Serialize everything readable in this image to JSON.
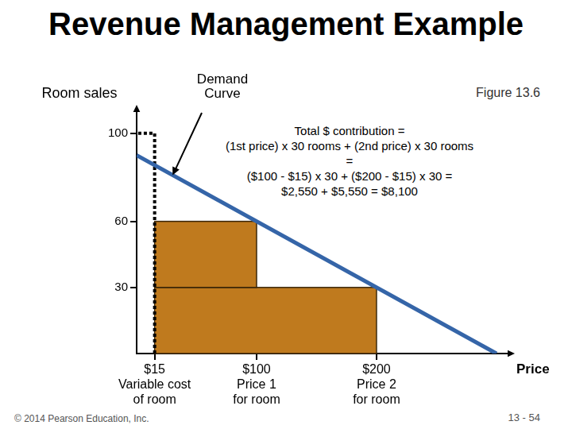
{
  "title": "Revenue Management Example",
  "figure_note": "Figure 13.6",
  "footer": "© 2014 Pearson Education, Inc.",
  "page": "13 - 54",
  "chart_data": {
    "type": "line",
    "x_label": "Price",
    "y_label": "Room sales",
    "annotation": "Total $ contribution =\n(1st price) x 30 rooms + (2nd price) x 30 rooms =\n($100 - $15) x 30 + ($200 - $15) x 30 =\n$2,550 + $5,550 = $8,100",
    "series": [
      {
        "name": "Demand Curve",
        "color": "#3565a8",
        "x": [
          0,
          300
        ],
        "values": [
          90,
          0
        ]
      }
    ],
    "rectangles": [
      {
        "x": [
          15,
          200
        ],
        "y": [
          0,
          30
        ],
        "color": "#bf7a1e"
      },
      {
        "x": [
          15,
          100
        ],
        "y": [
          30,
          60
        ],
        "color": "#bf7a1e"
      }
    ],
    "guide": {
      "x": 15,
      "y": 100,
      "line_style": "dotted"
    },
    "xlim": [
      0,
      310
    ],
    "ylim": [
      0,
      110
    ],
    "xticks": [
      {
        "value": 15,
        "label": "$15\nVariable cost\nof room"
      },
      {
        "value": 100,
        "label": "$100\nPrice 1\nfor room"
      },
      {
        "value": 200,
        "label": "$200\nPrice 2\nfor room"
      }
    ],
    "yticks": [
      30,
      60,
      100
    ],
    "grid": false
  }
}
